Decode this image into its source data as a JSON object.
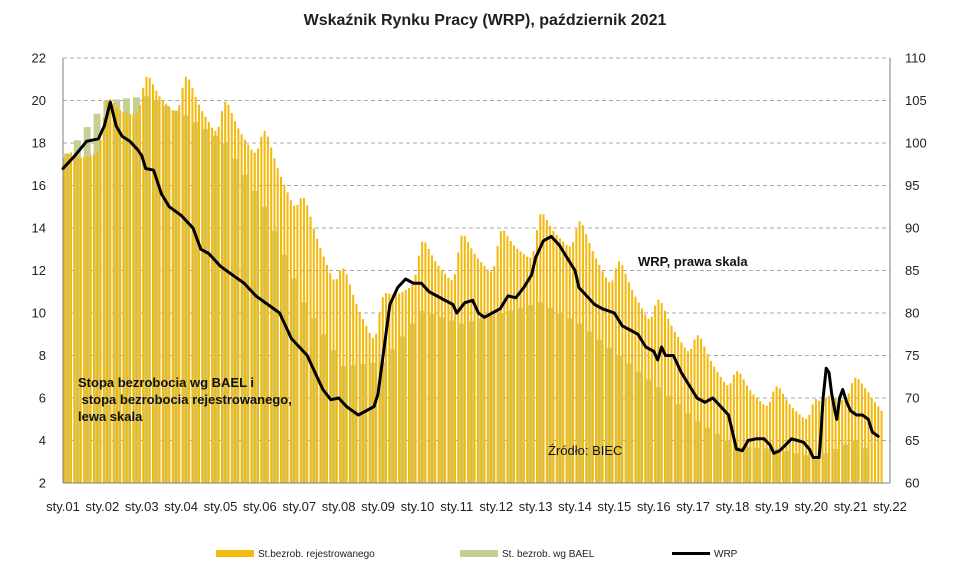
{
  "chart_data": {
    "type": "bar",
    "title": "Wskaźnik Rynku Pracy (WRP), październik 2021",
    "x_tick_labels": [
      "sty.01",
      "sty.02",
      "sty.03",
      "sty.04",
      "sty.05",
      "sty.06",
      "sty.07",
      "sty.08",
      "sty.09",
      "sty.10",
      "sty.11",
      "sty.12",
      "sty.13",
      "sty.14",
      "sty.15",
      "sty.16",
      "sty.17",
      "sty.18",
      "sty.19",
      "sty.20",
      "sty.21",
      "sty.22"
    ],
    "y_left": {
      "min": 2,
      "max": 22,
      "ticks": [
        "2",
        "4",
        "6",
        "8",
        "10",
        "12",
        "14",
        "16",
        "18",
        "20",
        "22"
      ]
    },
    "y_right": {
      "min": 60,
      "max": 110,
      "ticks": [
        "60",
        "65",
        "70",
        "75",
        "80",
        "85",
        "90",
        "95",
        "100",
        "105",
        "110"
      ]
    },
    "annotations": {
      "left_scale_note": [
        "Stopa bezrobocia wg BAEL i",
        " stopa bezrobocia rejestrowanego,",
        "lewa skala"
      ],
      "wrp_note": "WRP, prawa skala",
      "source": "Źródło: BIEC"
    },
    "series": [
      {
        "name": "St.bezrob. rejestrowanego",
        "axis": "left",
        "color": "#f2b90f",
        "start": "2001-01",
        "frequency": "monthly",
        "anchors": [
          [
            2001.0,
            16.8
          ],
          [
            2001.9,
            17.9
          ],
          [
            2002.1,
            19.5
          ],
          [
            2002.9,
            19.6
          ],
          [
            2003.1,
            20.6
          ],
          [
            2003.9,
            19.6
          ],
          [
            2004.1,
            20.6
          ],
          [
            2004.9,
            18.6
          ],
          [
            2005.1,
            19.4
          ],
          [
            2005.9,
            17.6
          ],
          [
            2006.1,
            18.0
          ],
          [
            2006.9,
            15.0
          ],
          [
            2007.1,
            14.8
          ],
          [
            2007.9,
            11.5
          ],
          [
            2008.1,
            11.5
          ],
          [
            2008.9,
            8.8
          ],
          [
            2009.1,
            10.4
          ],
          [
            2009.9,
            11.6
          ],
          [
            2010.1,
            13.0
          ],
          [
            2010.9,
            11.6
          ],
          [
            2011.1,
            13.3
          ],
          [
            2011.9,
            12.0
          ],
          [
            2012.1,
            13.5
          ],
          [
            2012.9,
            12.7
          ],
          [
            2013.1,
            14.3
          ],
          [
            2013.9,
            13.2
          ],
          [
            2014.1,
            13.9
          ],
          [
            2014.9,
            11.4
          ],
          [
            2015.1,
            12.0
          ],
          [
            2015.9,
            9.7
          ],
          [
            2016.1,
            10.2
          ],
          [
            2016.9,
            8.2
          ],
          [
            2017.1,
            8.5
          ],
          [
            2017.9,
            6.6
          ],
          [
            2018.1,
            6.8
          ],
          [
            2018.9,
            5.7
          ],
          [
            2019.1,
            6.1
          ],
          [
            2019.9,
            5.1
          ],
          [
            2020.1,
            5.5
          ],
          [
            2020.2,
            5.4
          ],
          [
            2020.4,
            6.1
          ],
          [
            2020.9,
            6.1
          ],
          [
            2021.1,
            6.5
          ],
          [
            2021.4,
            6.3
          ],
          [
            2021.75,
            5.6
          ]
        ],
        "seasonal": [
          0.5,
          0.6,
          0.55,
          0.35,
          0.15,
          0.0,
          -0.1,
          -0.15,
          -0.2,
          -0.25,
          -0.2,
          0.1
        ]
      },
      {
        "name": "St. bezrob. wg BAEL",
        "axis": "left",
        "color": "#c5cf92",
        "frequency": "quarterly",
        "anchors": [
          [
            2001.0,
            17.5
          ],
          [
            2002.0,
            20.0
          ],
          [
            2003.0,
            20.2
          ],
          [
            2004.0,
            19.3
          ],
          [
            2005.0,
            18.0
          ],
          [
            2006.0,
            15.0
          ],
          [
            2007.0,
            10.5
          ],
          [
            2008.0,
            7.5
          ],
          [
            2009.0,
            7.7
          ],
          [
            2010.0,
            10.1
          ],
          [
            2011.0,
            9.5
          ],
          [
            2012.0,
            10.0
          ],
          [
            2013.0,
            10.5
          ],
          [
            2014.0,
            9.5
          ],
          [
            2015.0,
            8.0
          ],
          [
            2016.0,
            6.5
          ],
          [
            2017.0,
            4.9
          ],
          [
            2018.0,
            3.7
          ],
          [
            2019.0,
            3.6
          ],
          [
            2020.0,
            3.2
          ],
          [
            2021.0,
            4.0
          ],
          [
            2021.4,
            3.4
          ]
        ]
      },
      {
        "name": "WRP",
        "axis": "right",
        "color": "#000000",
        "type": "line",
        "anchors": [
          [
            2001.0,
            97
          ],
          [
            2001.3,
            98.5
          ],
          [
            2001.6,
            100.2
          ],
          [
            2001.9,
            100.5
          ],
          [
            2002.05,
            102
          ],
          [
            2002.2,
            104.8
          ],
          [
            2002.35,
            102
          ],
          [
            2002.5,
            100.8
          ],
          [
            2002.7,
            100.2
          ],
          [
            2002.9,
            99.2
          ],
          [
            2003.0,
            98.5
          ],
          [
            2003.1,
            97
          ],
          [
            2003.3,
            96.8
          ],
          [
            2003.5,
            94
          ],
          [
            2003.7,
            92.5
          ],
          [
            2004.0,
            91.5
          ],
          [
            2004.3,
            90
          ],
          [
            2004.5,
            87.5
          ],
          [
            2004.7,
            87
          ],
          [
            2005.0,
            85.5
          ],
          [
            2005.3,
            84.5
          ],
          [
            2005.6,
            83.5
          ],
          [
            2005.9,
            82
          ],
          [
            2006.2,
            81
          ],
          [
            2006.5,
            80
          ],
          [
            2006.8,
            77
          ],
          [
            2007.0,
            76
          ],
          [
            2007.2,
            75
          ],
          [
            2007.4,
            73
          ],
          [
            2007.6,
            71
          ],
          [
            2007.8,
            69.8
          ],
          [
            2008.0,
            70
          ],
          [
            2008.2,
            69
          ],
          [
            2008.35,
            68.5
          ],
          [
            2008.5,
            68
          ],
          [
            2008.7,
            68.5
          ],
          [
            2008.9,
            69
          ],
          [
            2009.0,
            70.5
          ],
          [
            2009.1,
            74
          ],
          [
            2009.2,
            77.5
          ],
          [
            2009.3,
            81
          ],
          [
            2009.5,
            83
          ],
          [
            2009.7,
            84
          ],
          [
            2009.9,
            83.5
          ],
          [
            2010.1,
            83.5
          ],
          [
            2010.3,
            82.5
          ],
          [
            2010.5,
            82
          ],
          [
            2010.7,
            81.5
          ],
          [
            2010.9,
            81
          ],
          [
            2011.0,
            80
          ],
          [
            2011.2,
            81.2
          ],
          [
            2011.4,
            81.5
          ],
          [
            2011.55,
            80
          ],
          [
            2011.7,
            79.5
          ],
          [
            2011.9,
            80
          ],
          [
            2012.1,
            80.5
          ],
          [
            2012.3,
            82
          ],
          [
            2012.5,
            81.8
          ],
          [
            2012.7,
            83
          ],
          [
            2012.9,
            84.5
          ],
          [
            2013.0,
            86.5
          ],
          [
            2013.2,
            88.5
          ],
          [
            2013.4,
            89
          ],
          [
            2013.6,
            88
          ],
          [
            2013.8,
            86.5
          ],
          [
            2014.0,
            85
          ],
          [
            2014.1,
            83
          ],
          [
            2014.3,
            82
          ],
          [
            2014.5,
            81
          ],
          [
            2014.7,
            80.5
          ],
          [
            2015.0,
            80
          ],
          [
            2015.2,
            78.5
          ],
          [
            2015.4,
            78
          ],
          [
            2015.6,
            77.5
          ],
          [
            2015.8,
            76
          ],
          [
            2016.0,
            75.5
          ],
          [
            2016.1,
            74.5
          ],
          [
            2016.2,
            76
          ],
          [
            2016.3,
            75
          ],
          [
            2016.5,
            75
          ],
          [
            2016.7,
            73
          ],
          [
            2016.9,
            71.5
          ],
          [
            2017.1,
            70
          ],
          [
            2017.3,
            69.5
          ],
          [
            2017.5,
            70
          ],
          [
            2017.7,
            69
          ],
          [
            2017.9,
            68
          ],
          [
            2018.0,
            66
          ],
          [
            2018.1,
            64
          ],
          [
            2018.25,
            63.8
          ],
          [
            2018.4,
            65
          ],
          [
            2018.6,
            65.2
          ],
          [
            2018.8,
            65.2
          ],
          [
            2018.95,
            64.5
          ],
          [
            2019.05,
            63.5
          ],
          [
            2019.2,
            63.8
          ],
          [
            2019.35,
            64.5
          ],
          [
            2019.5,
            65.2
          ],
          [
            2019.65,
            65
          ],
          [
            2019.8,
            64.8
          ],
          [
            2019.95,
            64
          ],
          [
            2020.05,
            63
          ],
          [
            2020.2,
            63
          ],
          [
            2020.25,
            66
          ],
          [
            2020.3,
            70
          ],
          [
            2020.38,
            73.5
          ],
          [
            2020.45,
            73
          ],
          [
            2020.52,
            70.5
          ],
          [
            2020.6,
            68.5
          ],
          [
            2020.65,
            67.5
          ],
          [
            2020.72,
            70
          ],
          [
            2020.8,
            71
          ],
          [
            2020.9,
            69.5
          ],
          [
            2021.0,
            68.5
          ],
          [
            2021.15,
            68
          ],
          [
            2021.3,
            68
          ],
          [
            2021.45,
            67.5
          ],
          [
            2021.55,
            66
          ],
          [
            2021.7,
            65.5
          ]
        ]
      }
    ],
    "legend": [
      {
        "label": "St.bezrob. rejestrowanego",
        "color": "#f2b90f"
      },
      {
        "label": "St. bezrob. wg BAEL",
        "color": "#c5cf92"
      },
      {
        "label": "WRP",
        "color": "#000000"
      }
    ],
    "grid": true
  }
}
